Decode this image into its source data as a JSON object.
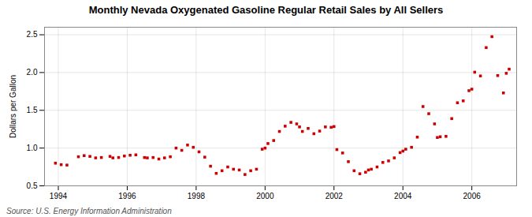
{
  "chart_data": {
    "type": "scatter",
    "title": "Monthly Nevada Oxygenated Gasoline Regular Retail Sales by All Sellers",
    "ylabel": "Dollars per Gallon",
    "annotations": [
      "Source: U.S. Energy Information Administration"
    ],
    "color": "#cc0000",
    "marker": "square",
    "grid": true,
    "xlim": [
      1993.6,
      2007.3
    ],
    "ylim": [
      0.5,
      2.6
    ],
    "xticks": [
      1994,
      1996,
      1998,
      2000,
      2002,
      2004,
      2006
    ],
    "yticks": [
      {
        "value": 0.5,
        "label": "0.5"
      },
      {
        "value": 1.0,
        "label": "1.0"
      },
      {
        "value": 1.5,
        "label": "1.5"
      },
      {
        "value": 2.0,
        "label": "2.0"
      },
      {
        "value": 2.5,
        "label": "2.5"
      }
    ],
    "x": [
      1993.917,
      1994.083,
      1994.25,
      1994.583,
      1994.75,
      1994.917,
      1995.083,
      1995.25,
      1995.5,
      1995.583,
      1995.75,
      1995.917,
      1996.083,
      1996.25,
      1996.5,
      1996.583,
      1996.75,
      1996.917,
      1997.083,
      1997.25,
      1997.417,
      1997.583,
      1997.75,
      1997.917,
      1998.083,
      1998.25,
      1998.417,
      1998.583,
      1998.75,
      1998.917,
      1999.083,
      1999.25,
      1999.417,
      1999.583,
      1999.75,
      1999.917,
      2000.0,
      2000.083,
      2000.25,
      2000.417,
      2000.583,
      2000.75,
      2000.917,
      2001.0,
      2001.083,
      2001.25,
      2001.417,
      2001.583,
      2001.75,
      2001.917,
      2002.0,
      2002.083,
      2002.25,
      2002.417,
      2002.583,
      2002.75,
      2002.917,
      2003.0,
      2003.083,
      2003.25,
      2003.417,
      2003.583,
      2003.75,
      2003.917,
      2004.0,
      2004.083,
      2004.25,
      2004.417,
      2004.583,
      2004.75,
      2004.917,
      2005.0,
      2005.083,
      2005.25,
      2005.417,
      2005.583,
      2005.75,
      2005.917,
      2006.0,
      2006.083,
      2006.25,
      2006.417,
      2006.583,
      2006.75,
      2006.917,
      2007.0,
      2007.083
    ],
    "values": [
      0.8,
      0.78,
      0.775,
      0.885,
      0.9,
      0.89,
      0.87,
      0.875,
      0.89,
      0.87,
      0.875,
      0.895,
      0.905,
      0.91,
      0.875,
      0.87,
      0.875,
      0.855,
      0.87,
      0.885,
      1.0,
      0.97,
      1.04,
      1.01,
      0.95,
      0.88,
      0.76,
      0.665,
      0.7,
      0.75,
      0.72,
      0.71,
      0.65,
      0.7,
      0.72,
      0.985,
      1.0,
      1.06,
      1.1,
      1.22,
      1.29,
      1.34,
      1.32,
      1.28,
      1.22,
      1.26,
      1.19,
      1.225,
      1.28,
      1.275,
      1.285,
      0.98,
      0.935,
      0.82,
      0.7,
      0.66,
      0.68,
      0.71,
      0.72,
      0.75,
      0.81,
      0.83,
      0.87,
      0.94,
      0.96,
      0.985,
      1.01,
      1.145,
      1.55,
      1.455,
      1.32,
      1.14,
      1.15,
      1.155,
      1.39,
      1.6,
      1.625,
      1.76,
      1.78,
      2.005,
      1.955,
      2.33,
      2.475,
      1.96,
      1.73,
      1.99,
      2.045
    ]
  }
}
